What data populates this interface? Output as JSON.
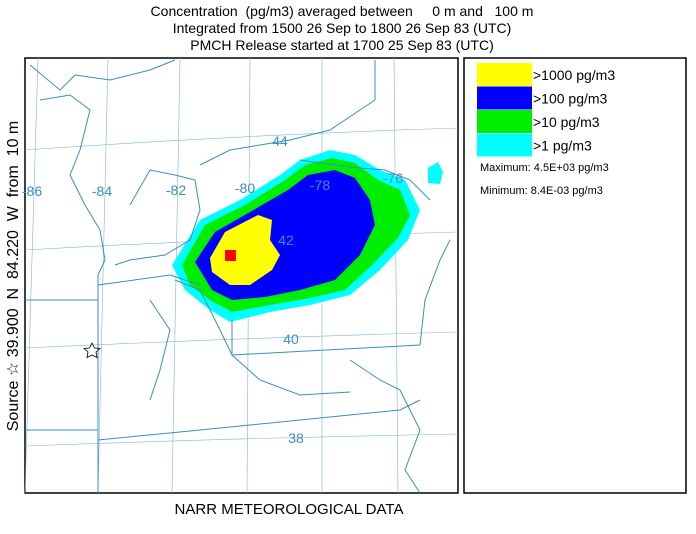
{
  "header": {
    "lines": [
      "Concentration  (pg/m3) averaged between     0 m and   100 m",
      "Integrated from 1500 26 Sep to 1800 26 Sep 83 (UTC)",
      "PMCH Release started at 1700 25 Sep 83 (UTC)"
    ]
  },
  "side_label": "Source ☆ 39.900  N  84.220  W  from  10 m",
  "legend": {
    "entries": [
      {
        "label": ">1000 pg/m3",
        "color": "#ffff00"
      },
      {
        "label": ">100 pg/m3",
        "color": "#0000ff"
      },
      {
        "label": ">10 pg/m3",
        "color": "#00ee00"
      },
      {
        "label": ">1 pg/m3",
        "color": "#00ffff"
      }
    ],
    "maximum": "Maximum: 4.5E+03 pg/m3",
    "minimum": "Minimum: 8.4E-03 pg/m3"
  },
  "map": {
    "lon_labels": [
      "-86",
      "-84",
      "-82",
      "-80",
      "-78",
      "-76"
    ],
    "lat_labels": [
      "44",
      "42",
      "40",
      "38"
    ]
  },
  "footer": "NARR METEOROLOGICAL DATA"
}
